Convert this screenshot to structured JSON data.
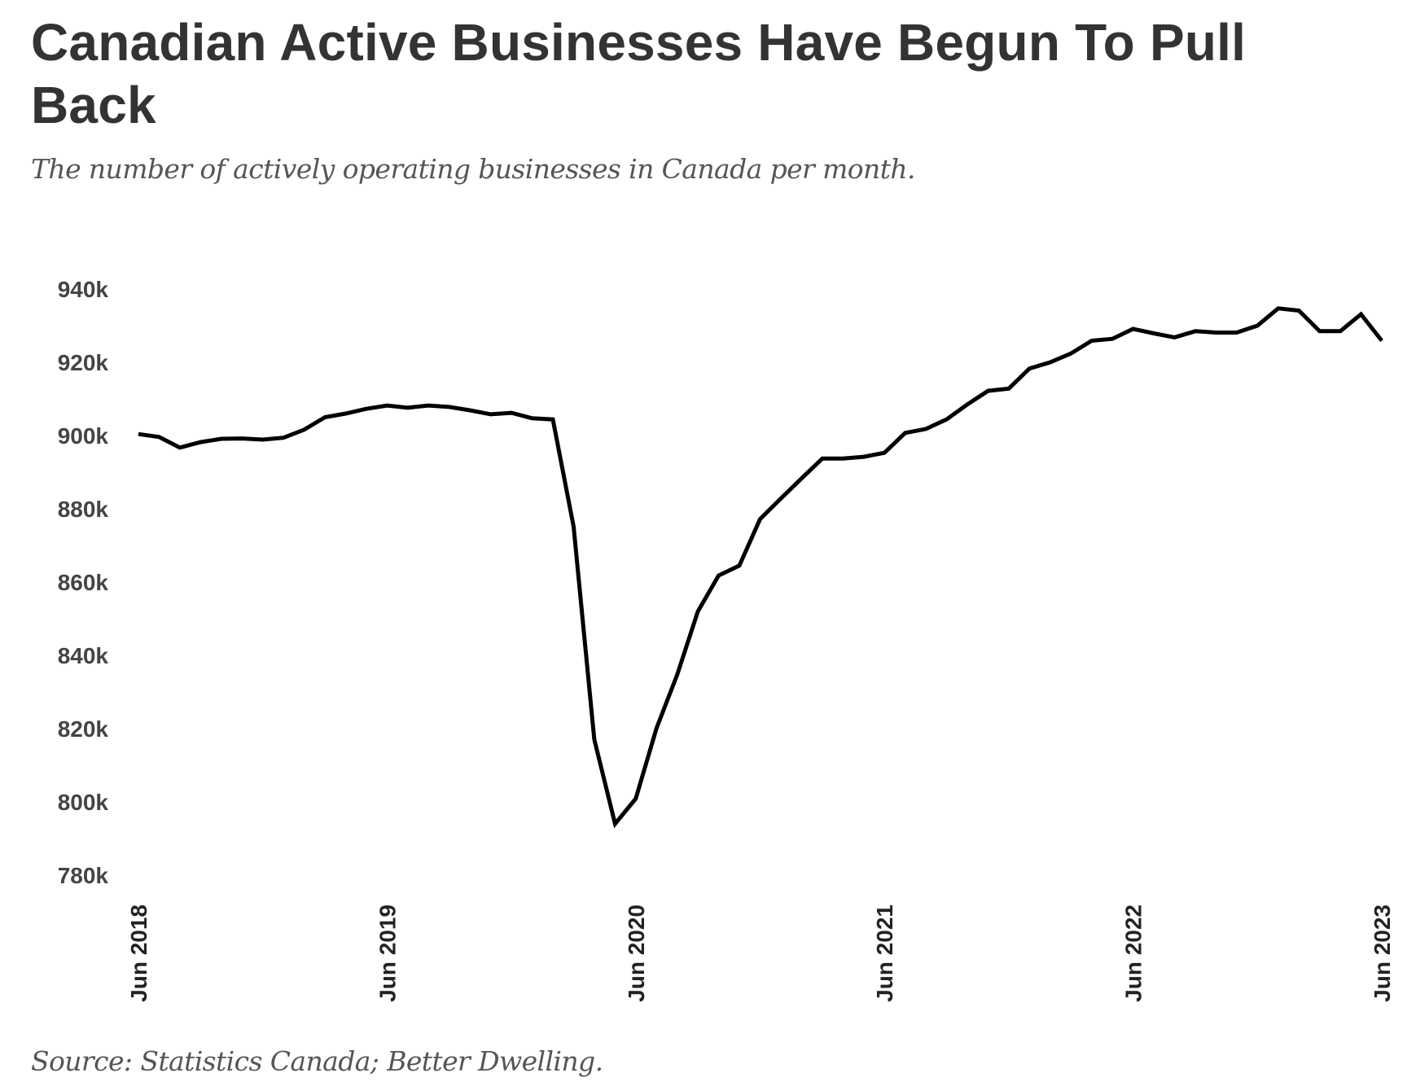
{
  "header": {
    "title": "Canadian Active Businesses Have Begun To Pull Back",
    "subtitle": "The number of actively operating businesses in Canada per month."
  },
  "footer": {
    "source": "Source: Statistics Canada; Better Dwelling."
  },
  "colors": {
    "line": "#000000",
    "title": "#333333",
    "subtitle": "#555555",
    "ytick": "#444444",
    "xtick": "#222222"
  },
  "chart_data": {
    "type": "line",
    "title": "Canadian Active Businesses Have Begun To Pull Back",
    "subtitle": "The number of actively operating businesses in Canada per month.",
    "xlabel": "",
    "ylabel": "",
    "unit": "thousands of businesses",
    "x_start": "Jun 2018",
    "x_end": "Jun 2023",
    "x_frequency": "monthly",
    "xticks": [
      {
        "label": "Jun 2018",
        "index": 0
      },
      {
        "label": "Jun 2019",
        "index": 12
      },
      {
        "label": "Jun 2020",
        "index": 24
      },
      {
        "label": "Jun 2021",
        "index": 36
      },
      {
        "label": "Jun 2022",
        "index": 48
      },
      {
        "label": "Jun 2023",
        "index": 60
      }
    ],
    "yticks": [
      {
        "label": "940k",
        "value": 940
      },
      {
        "label": "920k",
        "value": 920
      },
      {
        "label": "900k",
        "value": 900
      },
      {
        "label": "880k",
        "value": 880
      },
      {
        "label": "860k",
        "value": 860
      },
      {
        "label": "840k",
        "value": 840
      },
      {
        "label": "820k",
        "value": 820
      },
      {
        "label": "800k",
        "value": 800
      },
      {
        "label": "780k",
        "value": 780
      }
    ],
    "ylim": [
      780,
      940
    ],
    "grid": false,
    "legend": "none",
    "series": [
      {
        "name": "Active businesses",
        "values": [
          900.4,
          899.6,
          896.7,
          898.2,
          899.1,
          899.2,
          898.9,
          899.4,
          901.6,
          905.0,
          906.0,
          907.3,
          908.2,
          907.6,
          908.2,
          907.8,
          906.9,
          905.8,
          906.2,
          904.7,
          904.4,
          875.1,
          817.0,
          794.0,
          800.9,
          820.1,
          834.7,
          852.0,
          861.8,
          864.5,
          877.2,
          882.8,
          888.3,
          893.7,
          893.7,
          894.2,
          895.3,
          900.7,
          901.8,
          904.4,
          908.5,
          912.2,
          912.8,
          918.3,
          920.0,
          922.4,
          925.9,
          926.4,
          929.1,
          927.9,
          926.8,
          928.5,
          928.1,
          928.1,
          930.0,
          934.7,
          934.1,
          928.5,
          928.5,
          933.1,
          925.9
        ]
      }
    ]
  }
}
